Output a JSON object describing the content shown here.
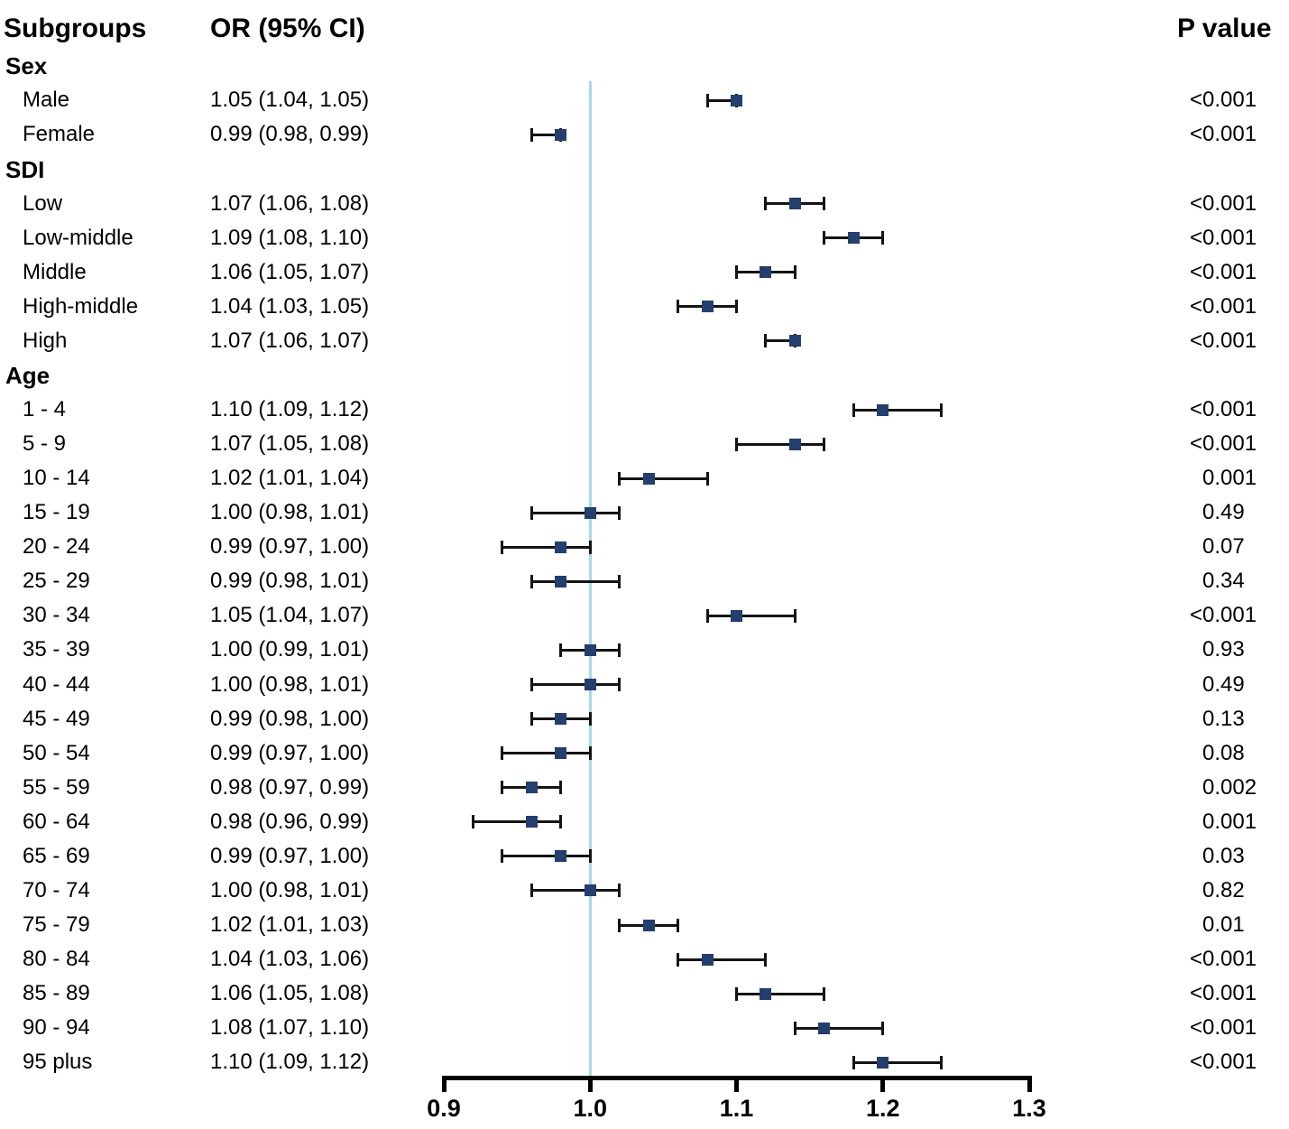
{
  "header": {
    "subgroups_label": "Subgroups",
    "or_label": "OR (95% CI)",
    "p_label": "P value"
  },
  "chart_data": {
    "type": "forest",
    "title": "",
    "columns": [
      "Subgroups",
      "OR (95% CI)",
      "P value"
    ],
    "x_axis": {
      "min": 0.9,
      "max": 1.3,
      "ticks": [
        "0.9",
        "1.0",
        "1.1",
        "1.2",
        "1.3"
      ],
      "tick_values": [
        0.9,
        1.0,
        1.1,
        1.2,
        1.3
      ]
    },
    "plot_mapping": {
      "note": "markers drawn as if axis spanned this range",
      "min": 0.95,
      "max": 1.15
    },
    "reference_line_value": 1.0,
    "colors": {
      "marker": "#243e6e",
      "error_bar": "#141414",
      "reference_line": "#a8d8e6",
      "axis": "#000000"
    },
    "rows": [
      {
        "type": "group",
        "label": "Sex"
      },
      {
        "type": "item",
        "label": "Male",
        "or_text": "1.05 (1.04, 1.05)",
        "or": 1.05,
        "lo": 1.04,
        "hi": 1.05,
        "p": "<0.001"
      },
      {
        "type": "item",
        "label": "Female",
        "or_text": "0.99 (0.98, 0.99)",
        "or": 0.99,
        "lo": 0.98,
        "hi": 0.99,
        "p": "<0.001"
      },
      {
        "type": "group",
        "label": "SDI"
      },
      {
        "type": "item",
        "label": "Low",
        "or_text": "1.07 (1.06, 1.08)",
        "or": 1.07,
        "lo": 1.06,
        "hi": 1.08,
        "p": "<0.001"
      },
      {
        "type": "item",
        "label": "Low-middle",
        "or_text": "1.09 (1.08, 1.10)",
        "or": 1.09,
        "lo": 1.08,
        "hi": 1.1,
        "p": "<0.001"
      },
      {
        "type": "item",
        "label": "Middle",
        "or_text": "1.06 (1.05, 1.07)",
        "or": 1.06,
        "lo": 1.05,
        "hi": 1.07,
        "p": "<0.001"
      },
      {
        "type": "item",
        "label": "High-middle",
        "or_text": "1.04 (1.03, 1.05)",
        "or": 1.04,
        "lo": 1.03,
        "hi": 1.05,
        "p": "<0.001"
      },
      {
        "type": "item",
        "label": "High",
        "or_text": "1.07 (1.06, 1.07)",
        "or": 1.07,
        "lo": 1.06,
        "hi": 1.07,
        "p": "<0.001"
      },
      {
        "type": "group",
        "label": "Age"
      },
      {
        "type": "item",
        "label": "1 - 4",
        "or_text": "1.10 (1.09, 1.12)",
        "or": 1.1,
        "lo": 1.09,
        "hi": 1.12,
        "p": "<0.001"
      },
      {
        "type": "item",
        "label": "5 - 9",
        "or_text": "1.07 (1.05, 1.08)",
        "or": 1.07,
        "lo": 1.05,
        "hi": 1.08,
        "p": "<0.001"
      },
      {
        "type": "item",
        "label": "10 - 14",
        "or_text": "1.02 (1.01, 1.04)",
        "or": 1.02,
        "lo": 1.01,
        "hi": 1.04,
        "p": "0.001"
      },
      {
        "type": "item",
        "label": "15 - 19",
        "or_text": "1.00 (0.98, 1.01)",
        "or": 1.0,
        "lo": 0.98,
        "hi": 1.01,
        "p": "0.49"
      },
      {
        "type": "item",
        "label": "20 - 24",
        "or_text": "0.99 (0.97, 1.00)",
        "or": 0.99,
        "lo": 0.97,
        "hi": 1.0,
        "p": "0.07"
      },
      {
        "type": "item",
        "label": "25 - 29",
        "or_text": "0.99 (0.98, 1.01)",
        "or": 0.99,
        "lo": 0.98,
        "hi": 1.01,
        "p": "0.34"
      },
      {
        "type": "item",
        "label": "30 - 34",
        "or_text": "1.05 (1.04, 1.07)",
        "or": 1.05,
        "lo": 1.04,
        "hi": 1.07,
        "p": "<0.001"
      },
      {
        "type": "item",
        "label": "35 - 39",
        "or_text": "1.00 (0.99, 1.01)",
        "or": 1.0,
        "lo": 0.99,
        "hi": 1.01,
        "p": "0.93"
      },
      {
        "type": "item",
        "label": "40 - 44",
        "or_text": "1.00 (0.98, 1.01)",
        "or": 1.0,
        "lo": 0.98,
        "hi": 1.01,
        "p": "0.49"
      },
      {
        "type": "item",
        "label": "45 - 49",
        "or_text": "0.99 (0.98, 1.00)",
        "or": 0.99,
        "lo": 0.98,
        "hi": 1.0,
        "p": "0.13"
      },
      {
        "type": "item",
        "label": "50 - 54",
        "or_text": "0.99 (0.97, 1.00)",
        "or": 0.99,
        "lo": 0.97,
        "hi": 1.0,
        "p": "0.08"
      },
      {
        "type": "item",
        "label": "55 - 59",
        "or_text": "0.98 (0.97, 0.99)",
        "or": 0.98,
        "lo": 0.97,
        "hi": 0.99,
        "p": "0.002"
      },
      {
        "type": "item",
        "label": "60 - 64",
        "or_text": "0.98 (0.96, 0.99)",
        "or": 0.98,
        "lo": 0.96,
        "hi": 0.99,
        "p": "0.001"
      },
      {
        "type": "item",
        "label": "65 - 69",
        "or_text": "0.99 (0.97, 1.00)",
        "or": 0.99,
        "lo": 0.97,
        "hi": 1.0,
        "p": "0.03"
      },
      {
        "type": "item",
        "label": "70 - 74",
        "or_text": "1.00 (0.98, 1.01)",
        "or": 1.0,
        "lo": 0.98,
        "hi": 1.01,
        "p": "0.82"
      },
      {
        "type": "item",
        "label": "75 - 79",
        "or_text": "1.02 (1.01, 1.03)",
        "or": 1.02,
        "lo": 1.01,
        "hi": 1.03,
        "p": "0.01"
      },
      {
        "type": "item",
        "label": "80 - 84",
        "or_text": "1.04 (1.03, 1.06)",
        "or": 1.04,
        "lo": 1.03,
        "hi": 1.06,
        "p": "<0.001"
      },
      {
        "type": "item",
        "label": "85 - 89",
        "or_text": "1.06 (1.05, 1.08)",
        "or": 1.06,
        "lo": 1.05,
        "hi": 1.08,
        "p": "<0.001"
      },
      {
        "type": "item",
        "label": "90 - 94",
        "or_text": "1.08 (1.07, 1.10)",
        "or": 1.08,
        "lo": 1.07,
        "hi": 1.1,
        "p": "<0.001"
      },
      {
        "type": "item",
        "label": "95 plus",
        "or_text": "1.10 (1.09, 1.12)",
        "or": 1.1,
        "lo": 1.09,
        "hi": 1.12,
        "p": "<0.001"
      }
    ]
  }
}
